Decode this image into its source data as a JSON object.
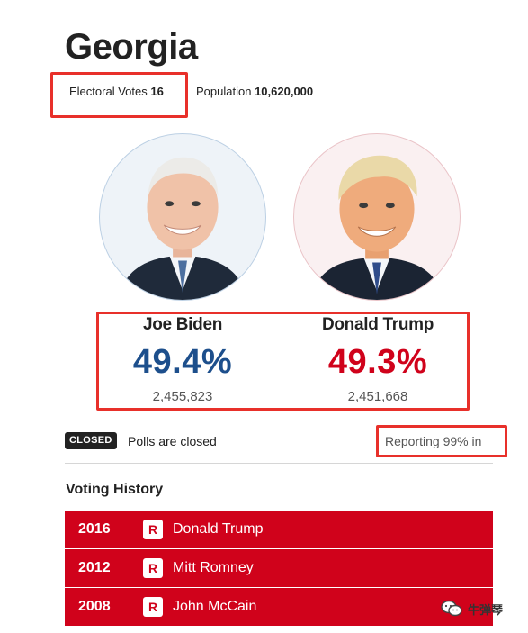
{
  "state": {
    "title": "Georgia",
    "electoral_votes_label": "Electoral Votes",
    "electoral_votes_value": "16",
    "population_label": "Population",
    "population_value": "10,620,000"
  },
  "candidates": [
    {
      "name": "Joe Biden",
      "percent": "49.4%",
      "votes": "2,455,823",
      "color": "#1d4f8c",
      "portrait_icon": "biden-portrait"
    },
    {
      "name": "Donald Trump",
      "percent": "49.3%",
      "votes": "2,451,668",
      "color": "#d0021b",
      "portrait_icon": "trump-portrait"
    }
  ],
  "status": {
    "badge": "CLOSED",
    "text": "Polls are closed",
    "reporting": "Reporting 99% in"
  },
  "history": {
    "title": "Voting History",
    "rows": [
      {
        "year": "2016",
        "party": "R",
        "name": "Donald Trump"
      },
      {
        "year": "2012",
        "party": "R",
        "name": "Mitt Romney"
      },
      {
        "year": "2008",
        "party": "R",
        "name": "John McCain"
      }
    ]
  },
  "watermark": {
    "text": "牛弹琴",
    "icon": "wechat-icon"
  },
  "colors": {
    "republican": "#d0021b",
    "democrat": "#1d4f8c",
    "highlight": "#e8302a"
  }
}
